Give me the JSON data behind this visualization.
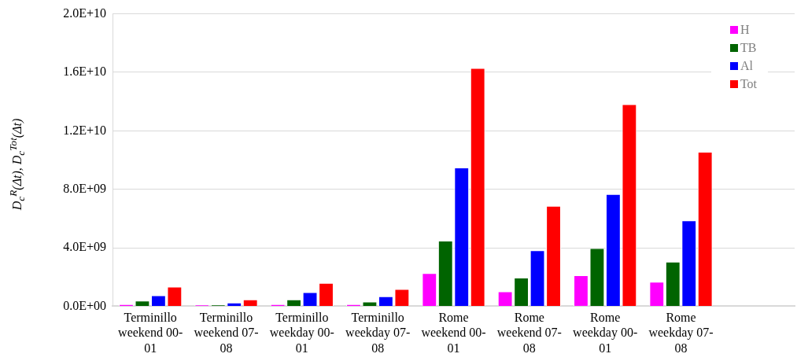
{
  "chart_data": {
    "type": "bar",
    "ylabel": "D$_{c}$$^{R}$(Δt), D$_{c}$$^{Tot}$(Δt)",
    "categories": [
      "Terminillo weekend 00-01",
      "Terminillo weekend 07-08",
      "Terminillo weekday 00-01",
      "Terminillo weekday 07-08",
      "Rome weekend 00-01",
      "Rome weekend 07-08",
      "Rome weekday 00-01",
      "Rome weekday 07-08",
      null
    ],
    "series": [
      {
        "name": "H",
        "color": "#ff00ff",
        "values": [
          140000000,
          90000000,
          140000000,
          140000000,
          2270000000,
          1020000000,
          2120000000,
          1680000000,
          null
        ]
      },
      {
        "name": "TB",
        "color": "#006400",
        "values": [
          390000000,
          90000000,
          460000000,
          320000000,
          4490000000,
          1960000000,
          3980000000,
          3050000000,
          null
        ]
      },
      {
        "name": "Al",
        "color": "#0000ff",
        "values": [
          750000000,
          250000000,
          960000000,
          680000000,
          9490000000,
          3830000000,
          7670000000,
          5870000000,
          null
        ]
      },
      {
        "name": "Tot",
        "color": "#ff0000",
        "values": [
          1340000000,
          470000000,
          1600000000,
          1180000000,
          16290000000,
          6870000000,
          13820000000,
          10570000000,
          null
        ]
      }
    ],
    "ylim": [
      0,
      20000000000
    ],
    "yticks": [
      {
        "value": 0,
        "label": "0.0E+00"
      },
      {
        "value": 4000000000,
        "label": "4.0E+09"
      },
      {
        "value": 8000000000,
        "label": "8.0E+09"
      },
      {
        "value": 12000000000,
        "label": "1.2E+10"
      },
      {
        "value": 16000000000,
        "label": "1.6E+10"
      },
      {
        "value": 20000000000,
        "label": "2.0E+10"
      }
    ],
    "grid": "y",
    "legend": "top right"
  }
}
